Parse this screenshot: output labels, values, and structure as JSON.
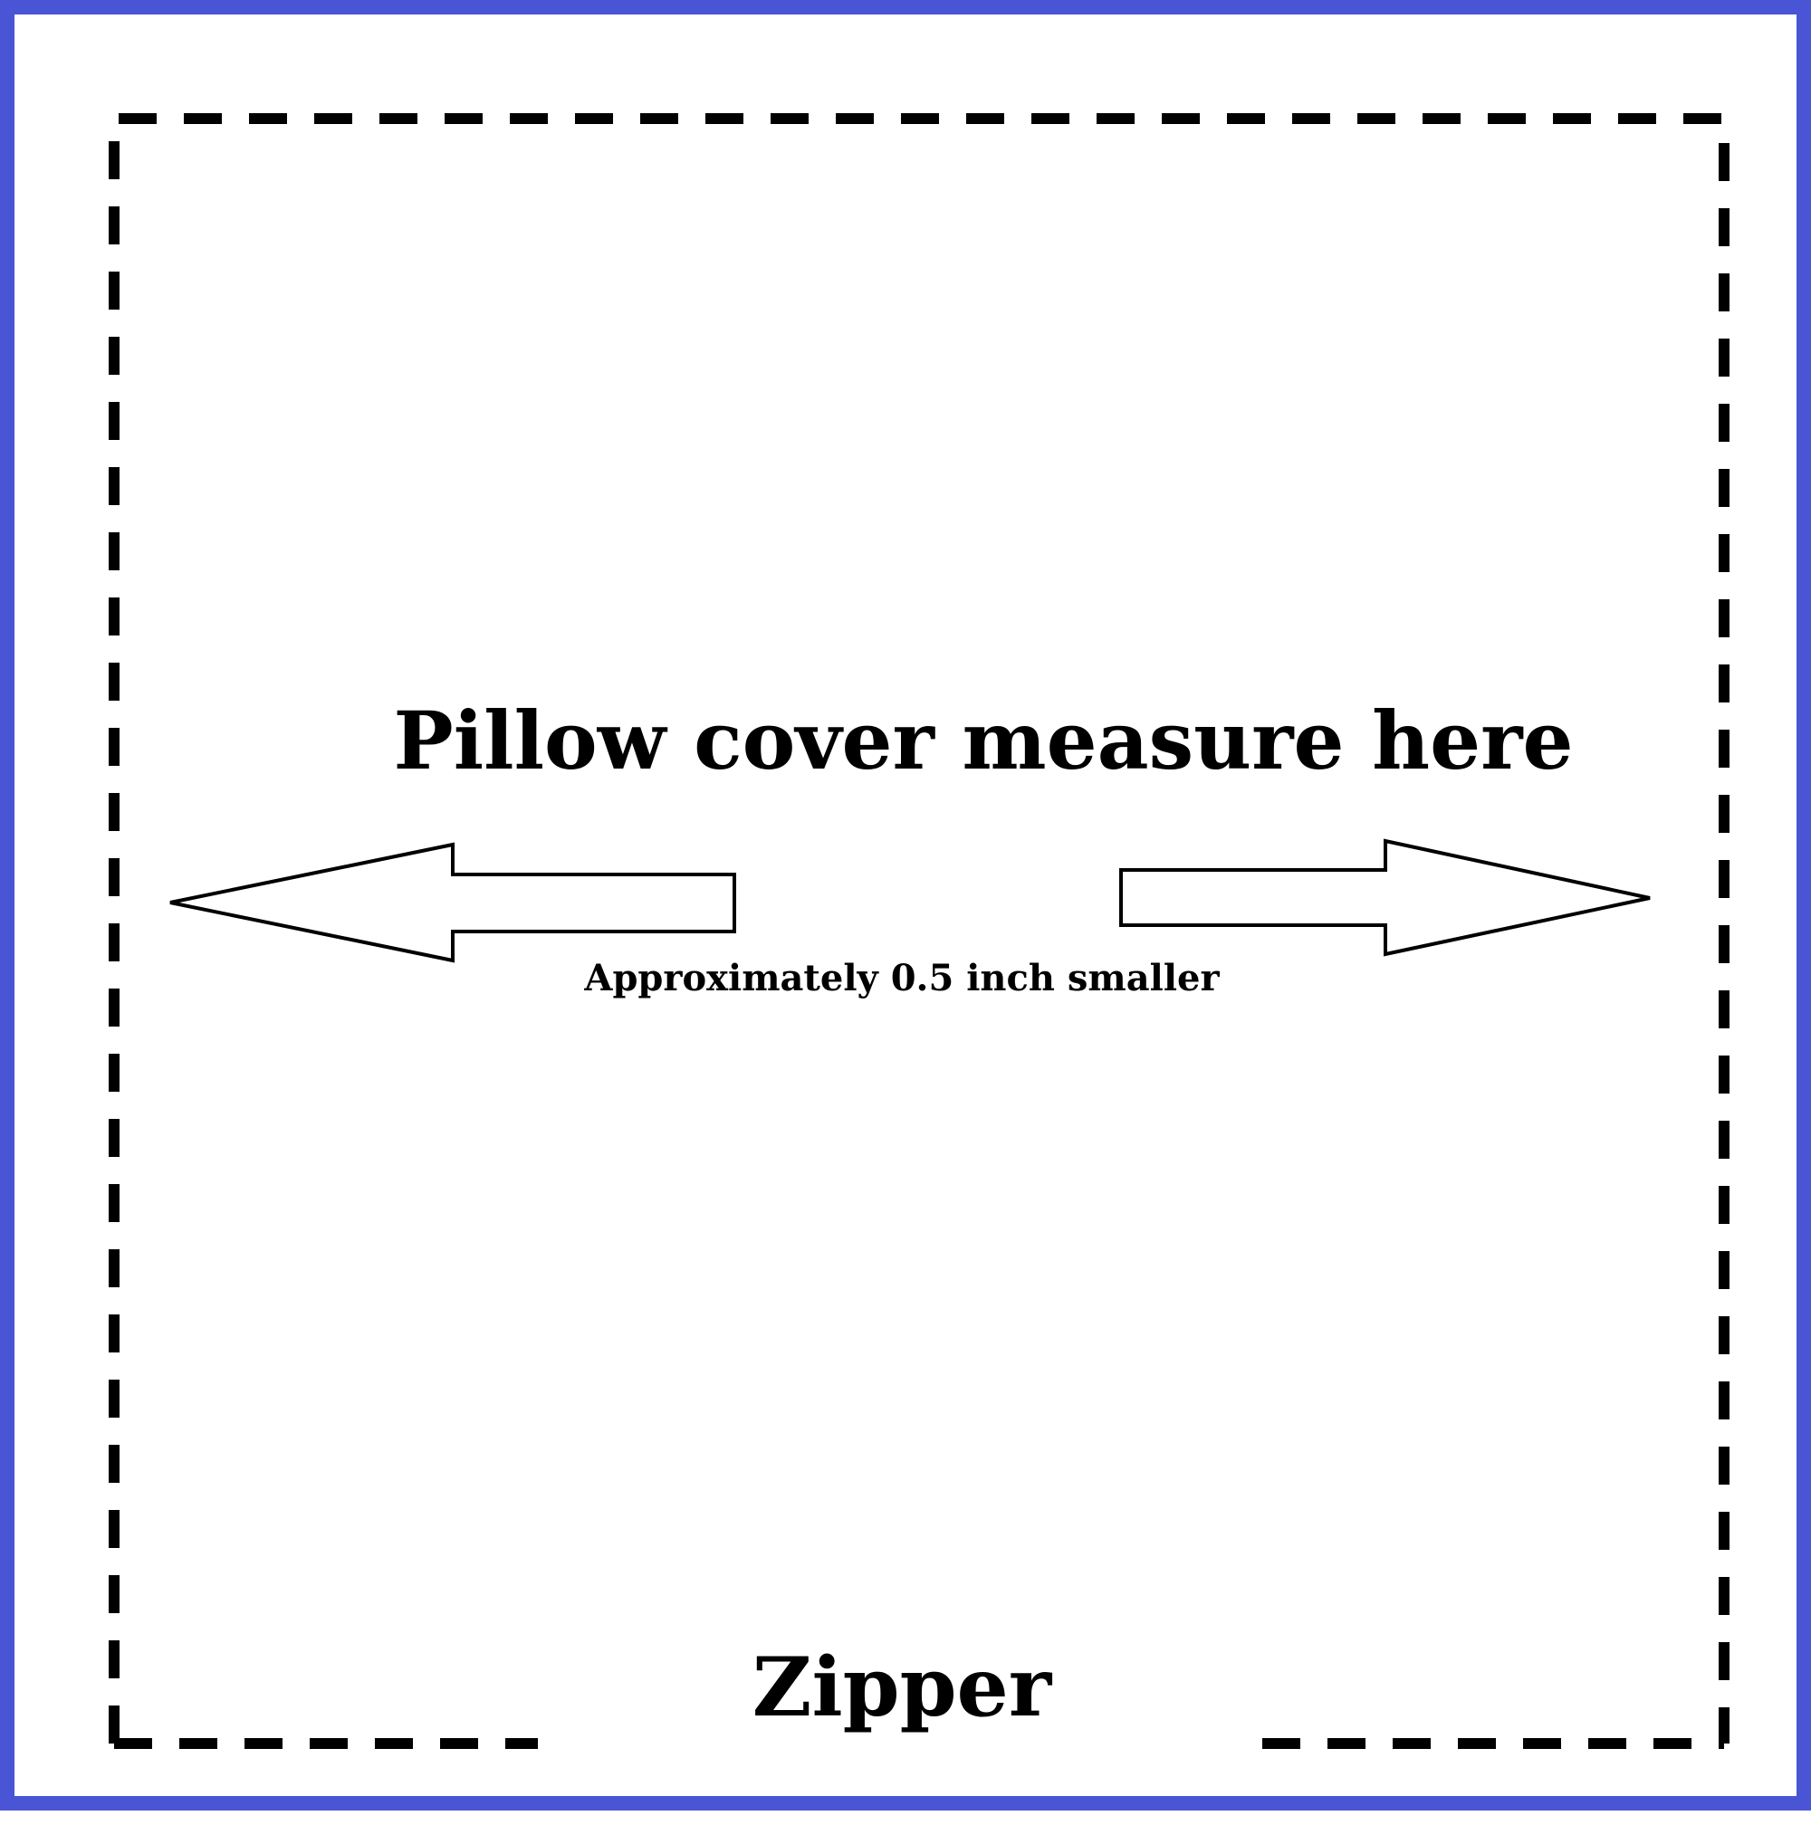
{
  "diagram": {
    "title": "Pillow cover measure here",
    "subtitle": "Approximately 0.5 inch smaller",
    "zipper_label": "Zipper",
    "colors": {
      "frame": "#4a55d6",
      "dashed_outline": "#000000",
      "arrow_stroke": "#000000",
      "arrow_fill": "#ffffff",
      "text": "#000000"
    }
  }
}
